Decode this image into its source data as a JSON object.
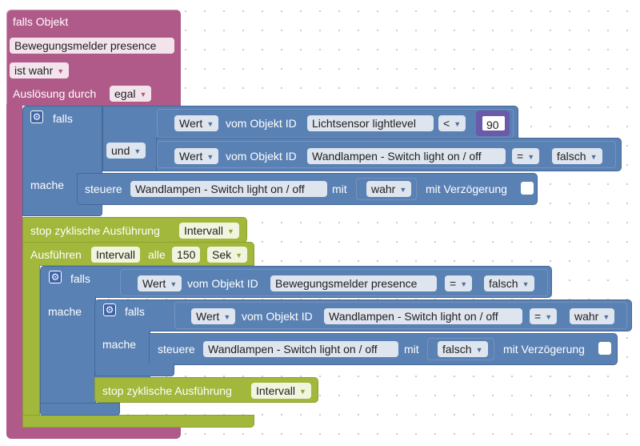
{
  "outer": {
    "title": "falls Objekt",
    "object": "Bewegungsmelder presence",
    "condition": "ist wahr",
    "trigger_label": "Auslösung durch",
    "trigger_value": "egal"
  },
  "if1": {
    "falls": "falls",
    "mache": "mache",
    "cond1": {
      "mode": "Wert",
      "of_object": "vom Objekt ID",
      "object": "Lichtsensor lightlevel",
      "op": "<",
      "value": "90"
    },
    "and": "und",
    "cond2": {
      "mode": "Wert",
      "of_object": "vom Objekt ID",
      "object": "Wandlampen - Switch light on / off",
      "op": "=",
      "value": "falsch"
    },
    "action": {
      "label": "steuere",
      "object": "Wandlampen - Switch light on / off",
      "with": "mit",
      "value": "wahr",
      "delay": "mit Verzögerung"
    }
  },
  "stop1": {
    "label": "stop zyklische Ausführung",
    "value": "Intervall"
  },
  "interval": {
    "label": "Ausführen",
    "name": "Intervall",
    "every": "alle",
    "value": "150",
    "unit": "Sek"
  },
  "if2": {
    "falls": "falls",
    "mache": "mache",
    "cond": {
      "mode": "Wert",
      "of_object": "vom Objekt ID",
      "object": "Bewegungsmelder presence",
      "op": "=",
      "value": "falsch"
    }
  },
  "if3": {
    "falls": "falls",
    "mache": "mache",
    "cond": {
      "mode": "Wert",
      "of_object": "vom Objekt ID",
      "object": "Wandlampen - Switch light on / off",
      "op": "=",
      "value": "wahr"
    },
    "action": {
      "label": "steuere",
      "object": "Wandlampen - Switch light on / off",
      "with": "mit",
      "value": "falsch",
      "delay": "mit Verzögerung"
    }
  },
  "stop2": {
    "label": "stop zyklische Ausführung",
    "value": "Intervall"
  },
  "icons": {
    "gear": "gear-icon",
    "dropdown": "dropdown-arrow-icon",
    "checkbox": "checkbox-icon"
  },
  "colors": {
    "event": "#b05a8a",
    "logic": "#5a81b4",
    "timer": "#a2b83c",
    "number": "#6b5aa9"
  }
}
